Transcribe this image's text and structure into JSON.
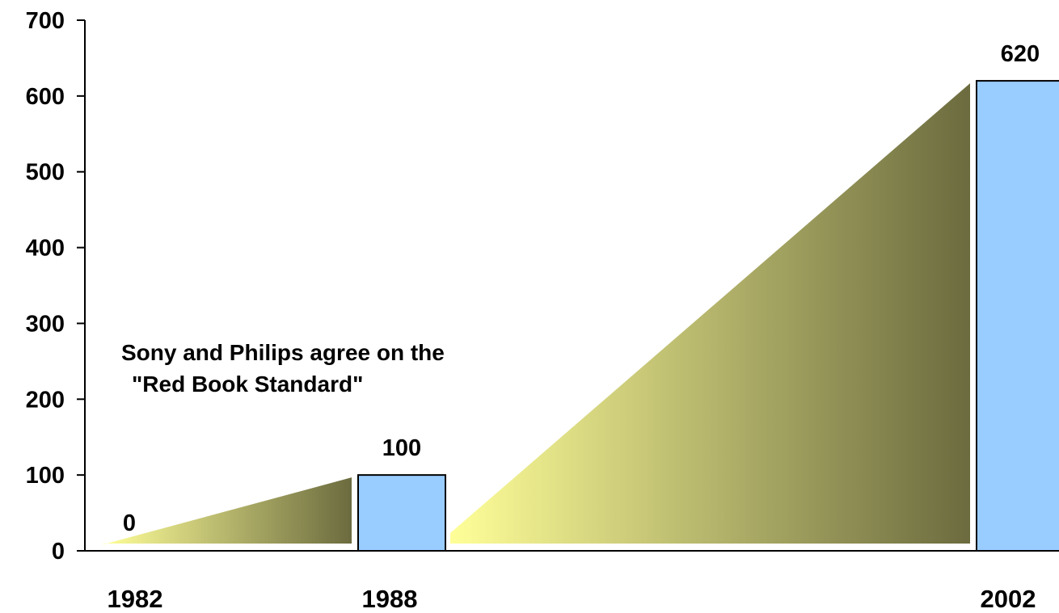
{
  "chart_data": {
    "type": "bar",
    "categories": [
      "1982",
      "1988",
      "2002"
    ],
    "values": [
      0,
      100,
      620
    ],
    "data_labels": [
      "0",
      "100",
      "620"
    ],
    "ylim": [
      0,
      700
    ],
    "y_ticks": [
      "0",
      "100",
      "200",
      "300",
      "400",
      "500",
      "600",
      "700"
    ],
    "grid": false,
    "annotation": [
      "Sony and Philips agree on the",
      "\"Red Book Standard\""
    ],
    "colors": {
      "bar_fill": "#99ccff",
      "bar_stroke": "#000000",
      "wedge_start": "#ffff99",
      "wedge_end": "#6b6b3f"
    }
  }
}
